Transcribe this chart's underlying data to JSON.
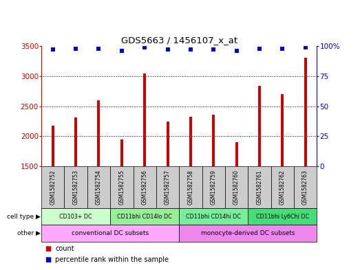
{
  "title": "GDS5663 / 1456107_x_at",
  "samples": [
    "GSM1582752",
    "GSM1582753",
    "GSM1582754",
    "GSM1582755",
    "GSM1582756",
    "GSM1582757",
    "GSM1582758",
    "GSM1582759",
    "GSM1582760",
    "GSM1582761",
    "GSM1582762",
    "GSM1582763"
  ],
  "counts": [
    2180,
    2310,
    2600,
    1950,
    3050,
    2250,
    2330,
    2360,
    1900,
    2840,
    2700,
    3310
  ],
  "percentile_ranks": [
    97,
    98,
    98,
    96,
    99,
    97,
    97,
    97,
    96,
    98,
    98,
    99
  ],
  "ylim": [
    1500,
    3500
  ],
  "yticks": [
    1500,
    2000,
    2500,
    3000,
    3500
  ],
  "right_ylim": [
    0,
    100
  ],
  "right_yticks": [
    0,
    25,
    50,
    75,
    100
  ],
  "bar_color": "#cc0000",
  "dot_color": "#0000cc",
  "cell_type_groups": [
    {
      "label": "CD103+ DC",
      "start": 0,
      "end": 3,
      "color": "#ccffcc"
    },
    {
      "label": "CD11bhi CD14lo DC",
      "start": 3,
      "end": 6,
      "color": "#99ee99"
    },
    {
      "label": "CD11bhi CD14hi DC",
      "start": 6,
      "end": 9,
      "color": "#77ee99"
    },
    {
      "label": "CD11bhi Ly6Chi DC",
      "start": 9,
      "end": 12,
      "color": "#44dd77"
    }
  ],
  "other_groups": [
    {
      "label": "conventional DC subsets",
      "start": 0,
      "end": 6,
      "color": "#ffaaff"
    },
    {
      "label": "monocyte-derived DC subsets",
      "start": 6,
      "end": 12,
      "color": "#ee88ee"
    }
  ],
  "cell_type_label": "cell type",
  "other_label": "other",
  "legend_count": "count",
  "legend_percentile": "percentile rank within the sample",
  "axis_color_left": "#cc0000",
  "axis_color_right": "#0000cc",
  "sample_box_color": "#cccccc",
  "bar_width": 0.12,
  "dot_size": 18
}
